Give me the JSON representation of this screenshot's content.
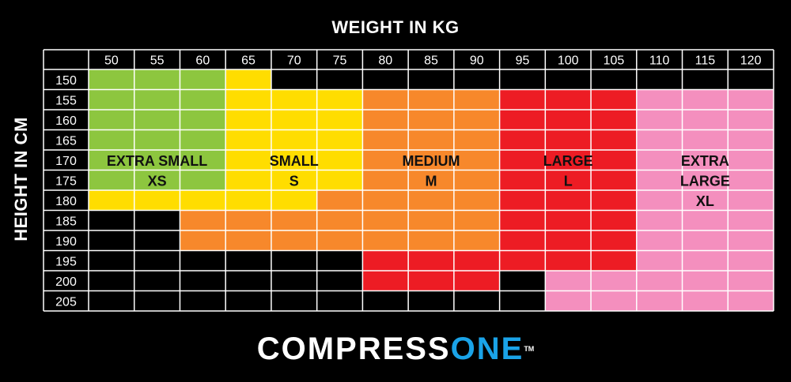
{
  "chart_data": {
    "type": "heatmap",
    "title": "WEIGHT IN KG",
    "xlabel": "WEIGHT IN KG",
    "ylabel": "HEIGHT IN CM",
    "x": [
      50,
      55,
      60,
      65,
      70,
      75,
      80,
      85,
      90,
      95,
      100,
      105,
      110,
      115,
      120
    ],
    "y": [
      150,
      155,
      160,
      165,
      170,
      175,
      180,
      185,
      190,
      195,
      200,
      205
    ],
    "sizes": {
      "XS": {
        "lines": [
          "EXTRA SMALL",
          "XS"
        ],
        "color": "#8dc63f"
      },
      "S": {
        "lines": [
          "SMALL",
          "S"
        ],
        "color": "#ffdd00"
      },
      "M": {
        "lines": [
          "MEDIUM",
          "M"
        ],
        "color": "#f7882b"
      },
      "L": {
        "lines": [
          "LARGE",
          "L"
        ],
        "color": "#ed1c24"
      },
      "XL": {
        "lines": [
          "EXTRA",
          "LARGE",
          "XL"
        ],
        "color": "#f48fbe"
      },
      "none": {
        "color": "#000000"
      }
    },
    "grid": [
      [
        "XS",
        "XS",
        "XS",
        "S",
        "none",
        "none",
        "none",
        "none",
        "none",
        "none",
        "none",
        "none",
        "none",
        "none",
        "none"
      ],
      [
        "XS",
        "XS",
        "XS",
        "S",
        "S",
        "S",
        "M",
        "M",
        "M",
        "L",
        "L",
        "L",
        "XL",
        "XL",
        "XL"
      ],
      [
        "XS",
        "XS",
        "XS",
        "S",
        "S",
        "S",
        "M",
        "M",
        "M",
        "L",
        "L",
        "L",
        "XL",
        "XL",
        "XL"
      ],
      [
        "XS",
        "XS",
        "XS",
        "S",
        "S",
        "S",
        "M",
        "M",
        "M",
        "L",
        "L",
        "L",
        "XL",
        "XL",
        "XL"
      ],
      [
        "XS",
        "XS",
        "XS",
        "S",
        "S",
        "S",
        "M",
        "M",
        "M",
        "L",
        "L",
        "L",
        "XL",
        "XL",
        "XL"
      ],
      [
        "XS",
        "XS",
        "XS",
        "S",
        "S",
        "S",
        "M",
        "M",
        "M",
        "L",
        "L",
        "L",
        "XL",
        "XL",
        "XL"
      ],
      [
        "S",
        "S",
        "S",
        "S",
        "S",
        "M",
        "M",
        "M",
        "M",
        "L",
        "L",
        "L",
        "XL",
        "XL",
        "XL"
      ],
      [
        "none",
        "none",
        "M",
        "M",
        "M",
        "M",
        "M",
        "M",
        "M",
        "L",
        "L",
        "L",
        "XL",
        "XL",
        "XL"
      ],
      [
        "none",
        "none",
        "M",
        "M",
        "M",
        "M",
        "M",
        "M",
        "M",
        "L",
        "L",
        "L",
        "XL",
        "XL",
        "XL"
      ],
      [
        "none",
        "none",
        "none",
        "none",
        "none",
        "none",
        "L",
        "L",
        "L",
        "L",
        "L",
        "L",
        "XL",
        "XL",
        "XL"
      ],
      [
        "none",
        "none",
        "none",
        "none",
        "none",
        "none",
        "L",
        "L",
        "L",
        "none",
        "XL",
        "XL",
        "XL",
        "XL",
        "XL"
      ],
      [
        "none",
        "none",
        "none",
        "none",
        "none",
        "none",
        "none",
        "none",
        "none",
        "none",
        "XL",
        "XL",
        "XL",
        "XL",
        "XL"
      ]
    ],
    "size_labels": [
      "XS",
      "S",
      "M",
      "L",
      "XL"
    ],
    "grid_lines": true
  },
  "logo": {
    "text_white": "COMPRESS",
    "text_blue": "ONE",
    "trademark": "TM"
  }
}
